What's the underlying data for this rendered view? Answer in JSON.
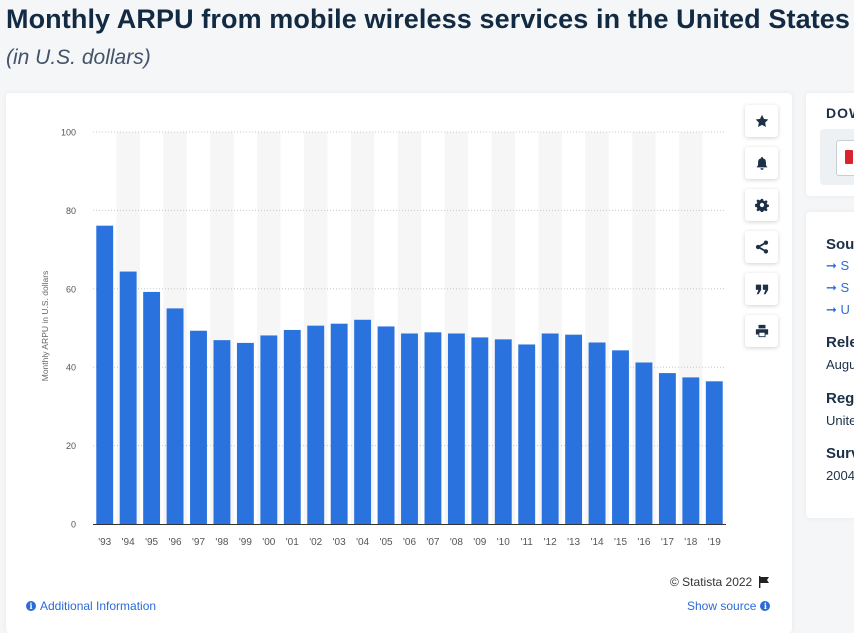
{
  "page": {
    "title": "Monthly ARPU from mobile wireless services in the United States",
    "subtitle": "(in U.S. dollars)"
  },
  "toolbar": {
    "buttons": [
      {
        "name": "star",
        "icon": "star-icon"
      },
      {
        "name": "bell",
        "icon": "bell-icon"
      },
      {
        "name": "settings",
        "icon": "gear-icon"
      },
      {
        "name": "share",
        "icon": "share-icon"
      },
      {
        "name": "cite",
        "icon": "quote-icon"
      },
      {
        "name": "print",
        "icon": "print-icon"
      }
    ]
  },
  "footer": {
    "copyright": "© Statista 2022",
    "additional_info": "Additional Information",
    "show_source": "Show source"
  },
  "sidebar": {
    "download_heading": "DOW",
    "source_heading": "Sou",
    "source_links": [
      "S",
      "S",
      "U"
    ],
    "release_heading": "Rele",
    "release_value": "Augu",
    "region_heading": "Reg",
    "region_value": "Unite",
    "survey_heading": "Surv",
    "survey_value": "2004"
  },
  "colors": {
    "bar": "#2a73de",
    "link": "#2b6bd8",
    "title": "#132a43"
  },
  "chart_data": {
    "type": "bar",
    "title": "Monthly ARPU from mobile wireless services in the United States",
    "subtitle": "(in U.S. dollars)",
    "xlabel": "",
    "ylabel": "Monthly ARPU in U.S. dollars",
    "ylim": [
      0,
      100
    ],
    "yticks": [
      0,
      20,
      40,
      60,
      80,
      100
    ],
    "grid": true,
    "categories": [
      "'93",
      "'94",
      "'95",
      "'96",
      "'97",
      "'98",
      "'99",
      "'00",
      "'01",
      "'02",
      "'03",
      "'04",
      "'05",
      "'06",
      "'07",
      "'08",
      "'09",
      "'10",
      "'11",
      "'12",
      "'13",
      "'14",
      "'15",
      "'16",
      "'17",
      "'18",
      "'19"
    ],
    "values": [
      76.1,
      64.4,
      59.2,
      55.0,
      49.3,
      46.9,
      46.2,
      48.1,
      49.5,
      50.6,
      51.1,
      52.1,
      50.4,
      48.6,
      48.9,
      48.6,
      47.6,
      47.1,
      45.8,
      48.6,
      48.3,
      46.3,
      44.3,
      41.2,
      38.5,
      37.4,
      36.4
    ]
  }
}
